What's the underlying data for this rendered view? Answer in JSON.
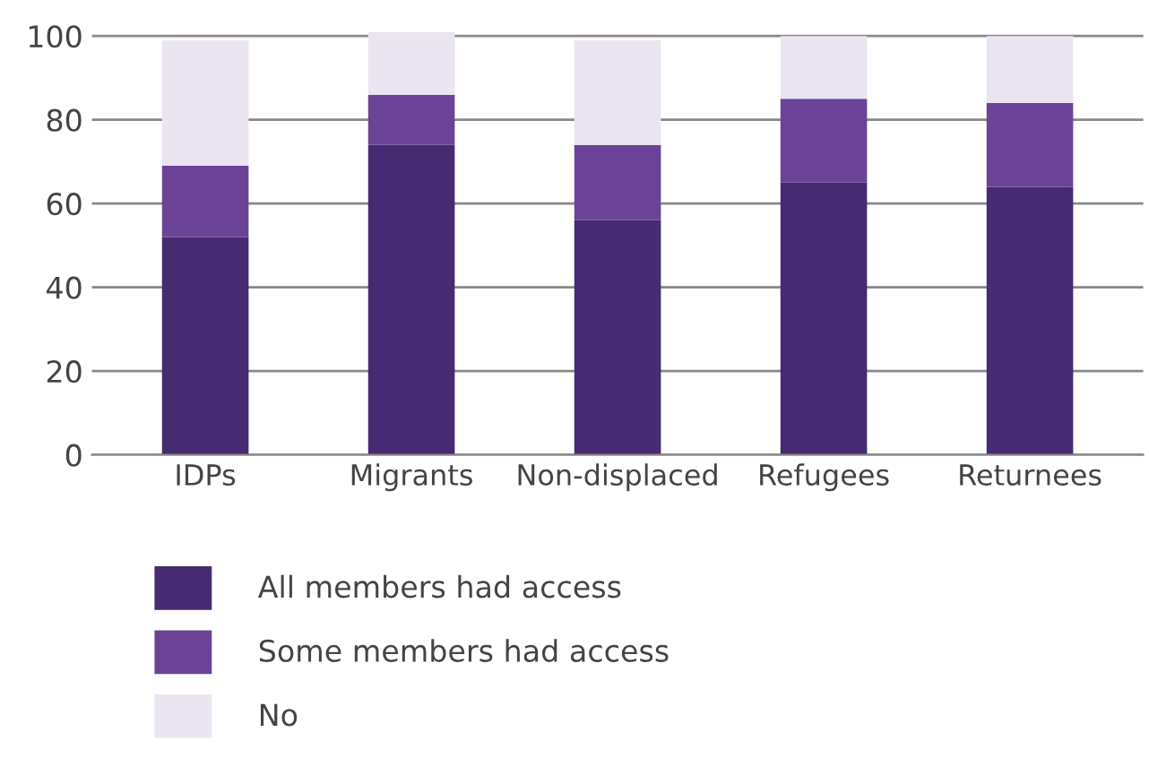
{
  "chart_data": {
    "type": "bar",
    "stacked": true,
    "categories": [
      "IDPs",
      "Migrants",
      "Non-displaced",
      "Refugees",
      "Returnees"
    ],
    "series": [
      {
        "name": "All members had access",
        "color": "#462a72",
        "values": [
          52,
          74,
          56,
          65,
          64
        ]
      },
      {
        "name": "Some members had access",
        "color": "#6a4398",
        "values": [
          17,
          12,
          18,
          20,
          20
        ]
      },
      {
        "name": "No",
        "color": "#ebe4f1",
        "values": [
          30,
          15,
          25,
          15,
          16
        ]
      }
    ],
    "ylim": [
      0,
      101
    ],
    "yticks": [
      0,
      20,
      40,
      60,
      80,
      100
    ],
    "grid": "y",
    "legend": "bottom"
  }
}
